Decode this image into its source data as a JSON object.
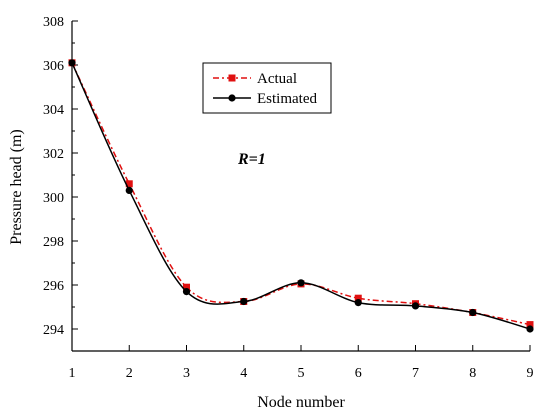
{
  "chart_data": {
    "type": "line",
    "xlabel": "Node number",
    "ylabel": "Pressure head (m)",
    "xlim": [
      1,
      9
    ],
    "ylim": [
      293,
      308
    ],
    "xticks": [
      1,
      2,
      3,
      4,
      5,
      6,
      7,
      8,
      9
    ],
    "yticks": [
      294,
      296,
      298,
      300,
      302,
      304,
      306,
      308
    ],
    "annotation": "R=1",
    "legend_position": "top-right",
    "grid": false,
    "series": [
      {
        "name": "Actual",
        "color": "#e01010",
        "line_style": "dash-dot",
        "marker": "square",
        "x": [
          1,
          2,
          3,
          4,
          5,
          6,
          7,
          8,
          9
        ],
        "y": [
          306.1,
          300.6,
          295.9,
          295.25,
          296.05,
          295.4,
          295.15,
          294.75,
          294.2
        ]
      },
      {
        "name": "Estimated",
        "color": "#000000",
        "line_style": "solid",
        "marker": "circle",
        "x": [
          1,
          2,
          3,
          4,
          5,
          6,
          7,
          8,
          9
        ],
        "y": [
          306.1,
          300.3,
          295.7,
          295.25,
          296.1,
          295.2,
          295.05,
          294.75,
          294.0
        ]
      }
    ]
  }
}
